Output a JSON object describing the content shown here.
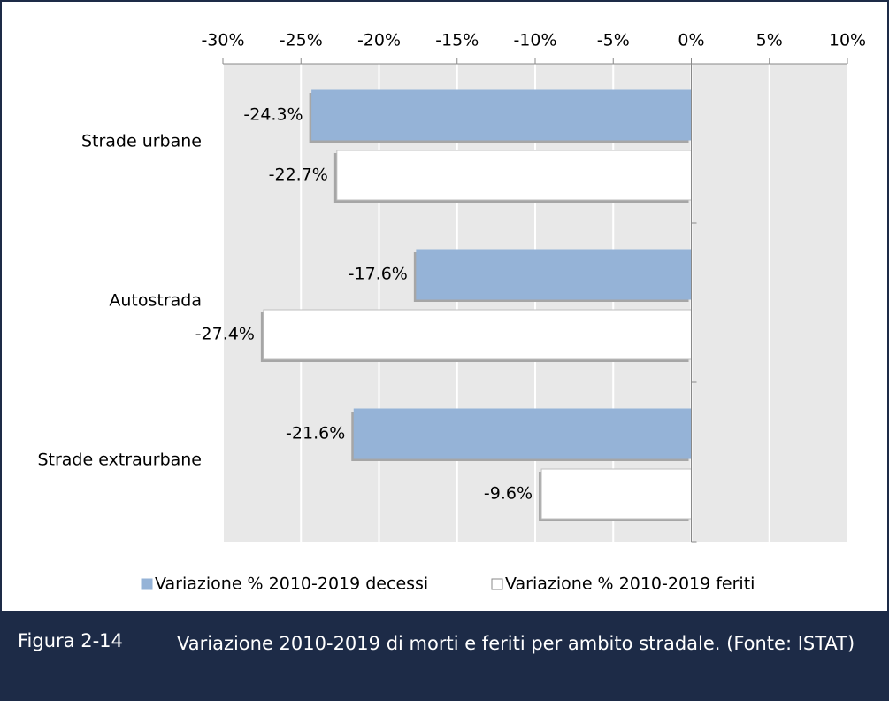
{
  "chart_data": {
    "type": "barh",
    "categories": [
      "Strade urbane",
      "Autostrada",
      "Strade extraurbane"
    ],
    "series": [
      {
        "name": "Variazione % 2010-2019 decessi",
        "color": "#95b3d7",
        "values": [
          -24.3,
          -17.6,
          -21.6
        ],
        "value_labels": [
          "-24.3%",
          "-17.6%",
          "-21.6%"
        ]
      },
      {
        "name": "Variazione % 2010-2019 feriti",
        "color": "#ffffff",
        "values": [
          -22.7,
          -27.4,
          -9.6
        ],
        "value_labels": [
          "-22.7%",
          "-27.4%",
          "-9.6%"
        ]
      }
    ],
    "xlim": [
      -30,
      10
    ],
    "xticks": [
      {
        "value": -30,
        "label": "-30%"
      },
      {
        "value": -25,
        "label": "-25%"
      },
      {
        "value": -20,
        "label": "-20%"
      },
      {
        "value": -15,
        "label": "-15%"
      },
      {
        "value": -10,
        "label": "-10%"
      },
      {
        "value": -5,
        "label": "-5%"
      },
      {
        "value": 0,
        "label": "0%"
      },
      {
        "value": 5,
        "label": "5%"
      },
      {
        "value": 10,
        "label": "10%"
      }
    ],
    "grid": true,
    "legend": "bottom"
  },
  "caption": {
    "label": "Figura 2-14",
    "text": "Variazione 2010-2019 di morti e feriti per ambito stradale. (Fonte: ISTAT)"
  }
}
